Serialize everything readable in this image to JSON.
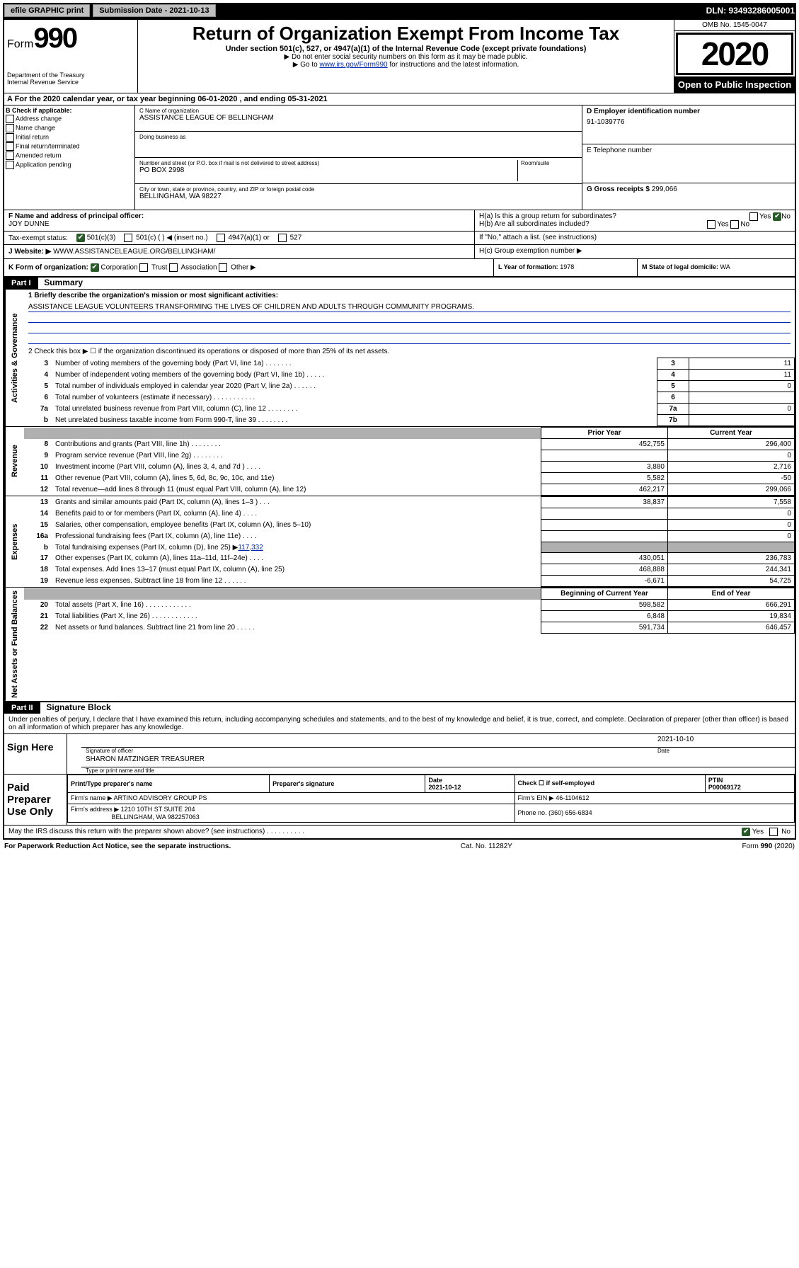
{
  "topbar": {
    "efile": "efile GRAPHIC print",
    "submission": "Submission Date - 2021-10-13",
    "dln": "DLN: 93493286005001"
  },
  "header": {
    "form_word": "Form",
    "form_num": "990",
    "dept": "Department of the Treasury\nInternal Revenue Service",
    "title": "Return of Organization Exempt From Income Tax",
    "sub": "Under section 501(c), 527, or 4947(a)(1) of the Internal Revenue Code (except private foundations)",
    "note1": "▶ Do not enter social security numbers on this form as it may be made public.",
    "note2_pre": "▶ Go to ",
    "note2_link": "www.irs.gov/Form990",
    "note2_post": " for instructions and the latest information.",
    "omb": "OMB No. 1545-0047",
    "year": "2020",
    "open": "Open to Public Inspection"
  },
  "lineA": "A For the 2020 calendar year, or tax year beginning 06-01-2020    , and ending 05-31-2021",
  "colB": {
    "title": "B Check if applicable:",
    "items": [
      "Address change",
      "Name change",
      "Initial return",
      "Final return/terminated",
      "Amended return",
      "Application pending"
    ]
  },
  "colC": {
    "name_lbl": "C Name of organization",
    "name": "ASSISTANCE LEAGUE OF BELLINGHAM",
    "dba_lbl": "Doing business as",
    "addr_lbl": "Number and street (or P.O. box if mail is not delivered to street address)",
    "room_lbl": "Room/suite",
    "addr": "PO BOX 2998",
    "city_lbl": "City or town, state or province, country, and ZIP or foreign postal code",
    "city": "BELLINGHAM, WA  98227"
  },
  "colD": {
    "lbl": "D Employer identification number",
    "val": "91-1039776"
  },
  "colE": {
    "lbl": "E Telephone number",
    "val": ""
  },
  "colG": {
    "lbl": "G Gross receipts $",
    "val": "299,066"
  },
  "colF": {
    "lbl": "F  Name and address of principal officer:",
    "val": "JOY DUNNE"
  },
  "colH": {
    "a": "H(a)  Is this a group return for subordinates?",
    "b": "H(b)  Are all subordinates included?",
    "b_note": "If \"No,\" attach a list. (see instructions)",
    "c": "H(c)  Group exemption number ▶"
  },
  "taxexempt": {
    "lbl": "Tax-exempt status:",
    "opt1": "501(c)(3)",
    "opt2": "501(c) (   ) ◀ (insert no.)",
    "opt3": "4947(a)(1) or",
    "opt4": "527"
  },
  "website": {
    "lbl": "J   Website: ▶",
    "val": "WWW.ASSISTANCELEAGUE.ORG/BELLINGHAM/"
  },
  "rowK": {
    "lbl": "K Form of organization:",
    "opts": [
      "Corporation",
      "Trust",
      "Association",
      "Other ▶"
    ]
  },
  "rowL": {
    "lbl": "L Year of formation:",
    "val": "1978"
  },
  "rowM": {
    "lbl": "M State of legal domicile:",
    "val": "WA"
  },
  "part1": {
    "hdr": "Part I",
    "title": "Summary",
    "side1": "Activities & Governance",
    "side2": "Revenue",
    "side3": "Expenses",
    "side4": "Net Assets or Fund Balances",
    "q1_lbl": "1  Briefly describe the organization's mission or most significant activities:",
    "q1_val": "ASSISTANCE LEAGUE VOLUNTEERS TRANSFORMING THE LIVES OF CHILDREN AND ADULTS THROUGH COMMUNITY PROGRAMS.",
    "q2": "2   Check this box ▶ ☐  if the organization discontinued its operations or disposed of more than 25% of its net assets.",
    "lines_gov": [
      {
        "n": "3",
        "d": "Number of voting members of the governing body (Part VI, line 1a)   .    .    .    .    .    .    .",
        "k": "3",
        "v": "11"
      },
      {
        "n": "4",
        "d": "Number of independent voting members of the governing body (Part VI, line 1b)   .    .    .    .    .",
        "k": "4",
        "v": "11"
      },
      {
        "n": "5",
        "d": "Total number of individuals employed in calendar year 2020 (Part V, line 2a)   .    .    .    .    .    .",
        "k": "5",
        "v": "0"
      },
      {
        "n": "6",
        "d": "Total number of volunteers (estimate if necessary)   .    .    .    .    .    .    .    .    .    .    .",
        "k": "6",
        "v": ""
      },
      {
        "n": "7a",
        "d": "Total unrelated business revenue from Part VIII, column (C), line 12   .    .    .    .    .    .    .    .",
        "k": "7a",
        "v": "0"
      },
      {
        "n": "b",
        "d": "Net unrelated business taxable income from Form 990-T, line 39   .    .    .    .    .    .    .    .",
        "k": "7b",
        "v": ""
      }
    ],
    "hdr_prior": "Prior Year",
    "hdr_curr": "Current Year",
    "lines_rev": [
      {
        "n": "8",
        "d": "Contributions and grants (Part VIII, line 1h)   .    .    .    .    .    .    .    .",
        "p": "452,755",
        "c": "296,400"
      },
      {
        "n": "9",
        "d": "Program service revenue (Part VIII, line 2g)   .    .    .    .    .    .    .    .",
        "p": "",
        "c": "0"
      },
      {
        "n": "10",
        "d": "Investment income (Part VIII, column (A), lines 3, 4, and 7d )   .    .    .    .",
        "p": "3,880",
        "c": "2,716"
      },
      {
        "n": "11",
        "d": "Other revenue (Part VIII, column (A), lines 5, 6d, 8c, 9c, 10c, and 11e)",
        "p": "5,582",
        "c": "-50"
      },
      {
        "n": "12",
        "d": "Total revenue—add lines 8 through 11 (must equal Part VIII, column (A), line 12)",
        "p": "462,217",
        "c": "299,066"
      }
    ],
    "lines_exp": [
      {
        "n": "13",
        "d": "Grants and similar amounts paid (Part IX, column (A), lines 1–3 )   .    .    .",
        "p": "38,837",
        "c": "7,558"
      },
      {
        "n": "14",
        "d": "Benefits paid to or for members (Part IX, column (A), line 4)   .    .    .    .",
        "p": "",
        "c": "0"
      },
      {
        "n": "15",
        "d": "Salaries, other compensation, employee benefits (Part IX, column (A), lines 5–10)",
        "p": "",
        "c": "0"
      },
      {
        "n": "16a",
        "d": "Professional fundraising fees (Part IX, column (A), line 11e)   .    .    .    .",
        "p": "",
        "c": "0"
      }
    ],
    "line16b": {
      "n": "b",
      "d": "Total fundraising expenses (Part IX, column (D), line 25) ▶",
      "v": "117,332"
    },
    "lines_exp2": [
      {
        "n": "17",
        "d": "Other expenses (Part IX, column (A), lines 11a–11d, 11f–24e)   .    .    .    .",
        "p": "430,051",
        "c": "236,783"
      },
      {
        "n": "18",
        "d": "Total expenses. Add lines 13–17 (must equal Part IX, column (A), line 25)",
        "p": "468,888",
        "c": "244,341"
      },
      {
        "n": "19",
        "d": "Revenue less expenses. Subtract line 18 from line 12   .    .    .    .    .    .",
        "p": "-6,671",
        "c": "54,725"
      }
    ],
    "hdr_boy": "Beginning of Current Year",
    "hdr_eoy": "End of Year",
    "lines_net": [
      {
        "n": "20",
        "d": "Total assets (Part X, line 16)   .    .    .    .    .    .    .    .    .    .    .    .",
        "p": "598,582",
        "c": "666,291"
      },
      {
        "n": "21",
        "d": "Total liabilities (Part X, line 26)   .    .    .    .    .    .    .    .    .    .    .    .",
        "p": "6,848",
        "c": "19,834"
      },
      {
        "n": "22",
        "d": "Net assets or fund balances. Subtract line 21 from line 20   .    .    .    .    .",
        "p": "591,734",
        "c": "646,457"
      }
    ]
  },
  "part2": {
    "hdr": "Part II",
    "title": "Signature Block",
    "perjury": "Under penalties of perjury, I declare that I have examined this return, including accompanying schedules and statements, and to the best of my knowledge and belief, it is true, correct, and complete. Declaration of preparer (other than officer) is based on all information of which preparer has any knowledge.",
    "sign_here": "Sign Here",
    "sig_date": "2021-10-10",
    "sig_lbl1": "Signature of officer",
    "sig_lbl1b": "Date",
    "name_title": "SHARON MATZINGER TREASURER",
    "sig_lbl2": "Type or print name and title",
    "paid": "Paid Preparer Use Only",
    "prep_hdrs": [
      "Print/Type preparer's name",
      "Preparer's signature",
      "Date",
      "",
      "PTIN"
    ],
    "prep_date": "2021-10-12",
    "prep_check": "Check ☐ if self-employed",
    "ptin": "P00069172",
    "firm_name_lbl": "Firm's name      ▶",
    "firm_name": "ARTINO ADVISORY GROUP PS",
    "firm_ein_lbl": "Firm's EIN ▶",
    "firm_ein": "46-1104612",
    "firm_addr_lbl": "Firm's address ▶",
    "firm_addr1": "1210 10TH ST SUITE 204",
    "firm_addr2": "BELLINGHAM, WA  982257063",
    "phone_lbl": "Phone no.",
    "phone": "(360) 656-6834",
    "discuss": "May the IRS discuss this return with the preparer shown above? (see instructions)   .    .    .    .    .    .    .    .    .    .",
    "yes": "Yes",
    "no": "No"
  },
  "footer": {
    "left": "For Paperwork Reduction Act Notice, see the separate instructions.",
    "mid": "Cat. No. 11282Y",
    "right": "Form 990 (2020)"
  },
  "colors": {
    "link": "#0029b3",
    "check": "#2a5a2a"
  }
}
